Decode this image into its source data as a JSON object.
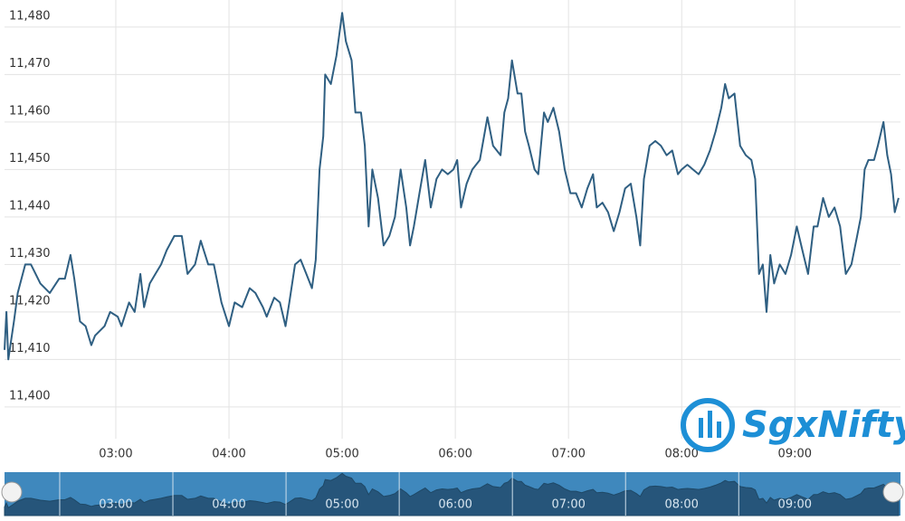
{
  "chart_data": {
    "type": "line",
    "watermark": "SgxNifty",
    "x": [
      121,
      122,
      123,
      126,
      128,
      132,
      135,
      140,
      145,
      150,
      153,
      156,
      158,
      161,
      164,
      167,
      169,
      174,
      177,
      181,
      183,
      187,
      190,
      193,
      195,
      198,
      201,
      204,
      207,
      211,
      215,
      218,
      222,
      225,
      229,
      232,
      236,
      240,
      243,
      247,
      251,
      254,
      258,
      260,
      264,
      267,
      270,
      272,
      275,
      278,
      281,
      284,
      286,
      288,
      290,
      291,
      294,
      297,
      300,
      302,
      305,
      307,
      310,
      312,
      314,
      316,
      319,
      322,
      325,
      328,
      331,
      334,
      336,
      338,
      341,
      344,
      347,
      350,
      353,
      356,
      359,
      361,
      363,
      366,
      369,
      373,
      377,
      380,
      384,
      386,
      388,
      390,
      393,
      395,
      397,
      399,
      402,
      404,
      407,
      409,
      412,
      415,
      418,
      421,
      424,
      427,
      430,
      433,
      435,
      438,
      441,
      444,
      447,
      450,
      453,
      456,
      458,
      460,
      463,
      466,
      469,
      472,
      475,
      478,
      480,
      483,
      486,
      489,
      492,
      495,
      498,
      501,
      503,
      505,
      508,
      511,
      514,
      517,
      519,
      521,
      523,
      525,
      527,
      529,
      532,
      535,
      538,
      541,
      544,
      547,
      550,
      552,
      555,
      558,
      561,
      564,
      567,
      570,
      573,
      575,
      577,
      579,
      582,
      584,
      587,
      589,
      591,
      593,
      595
    ],
    "series": [
      {
        "name": "SGX Nifty",
        "color": "#2f5f82",
        "values": [
          11412,
          11420,
          11410,
          11418,
          11424,
          11430,
          11430,
          11426,
          11424,
          11427,
          11427,
          11432,
          11427,
          11418,
          11417,
          11413,
          11415,
          11417,
          11420,
          11419,
          11417,
          11422,
          11420,
          11428,
          11421,
          11426,
          11428,
          11430,
          11433,
          11436,
          11436,
          11428,
          11430,
          11435,
          11430,
          11430,
          11422,
          11417,
          11422,
          11421,
          11425,
          11424,
          11421,
          11419,
          11423,
          11422,
          11417,
          11422,
          11430,
          11431,
          11428,
          11425,
          11431,
          11450,
          11457,
          11470,
          11468,
          11474,
          11483,
          11477,
          11473,
          11462,
          11462,
          11455,
          11438,
          11450,
          11444,
          11434,
          11436,
          11440,
          11450,
          11442,
          11434,
          11438,
          11445,
          11452,
          11442,
          11448,
          11450,
          11449,
          11450,
          11452,
          11442,
          11447,
          11450,
          11452,
          11461,
          11455,
          11453,
          11462,
          11465,
          11473,
          11466,
          11466,
          11458,
          11455,
          11450,
          11449,
          11462,
          11460,
          11463,
          11458,
          11450,
          11445,
          11445,
          11442,
          11446,
          11449,
          11442,
          11443,
          11441,
          11437,
          11441,
          11446,
          11447,
          11440,
          11434,
          11448,
          11455,
          11456,
          11455,
          11453,
          11454,
          11449,
          11450,
          11451,
          11450,
          11449,
          11451,
          11454,
          11458,
          11463,
          11468,
          11465,
          11466,
          11455,
          11453,
          11452,
          11448,
          11428,
          11430,
          11420,
          11432,
          11426,
          11430,
          11428,
          11432,
          11438,
          11433,
          11428,
          11438,
          11438,
          11444,
          11440,
          11442,
          11438,
          11428,
          11430,
          11436,
          11440,
          11450,
          11452,
          11452,
          11455,
          11460,
          11453,
          11449,
          11441,
          11444
        ]
      }
    ],
    "xlim": [
      121,
      596
    ],
    "xticks": [
      {
        "value": 180,
        "label": "03:00"
      },
      {
        "value": 240,
        "label": "04:00"
      },
      {
        "value": 300,
        "label": "05:00"
      },
      {
        "value": 360,
        "label": "06:00"
      },
      {
        "value": 420,
        "label": "07:00"
      },
      {
        "value": 480,
        "label": "08:00"
      },
      {
        "value": 540,
        "label": "09:00"
      }
    ],
    "ylim": [
      11393.3,
      11485.7
    ],
    "yticks": [
      {
        "value": 11400,
        "label": "11,400"
      },
      {
        "value": 11410,
        "label": "11,410"
      },
      {
        "value": 11420,
        "label": "11,420"
      },
      {
        "value": 11430,
        "label": "11,430"
      },
      {
        "value": 11440,
        "label": "11,440"
      },
      {
        "value": 11450,
        "label": "11,450"
      },
      {
        "value": 11460,
        "label": "11,460"
      },
      {
        "value": 11470,
        "label": "11,470"
      },
      {
        "value": 11480,
        "label": "11,480"
      }
    ],
    "grid": true
  }
}
